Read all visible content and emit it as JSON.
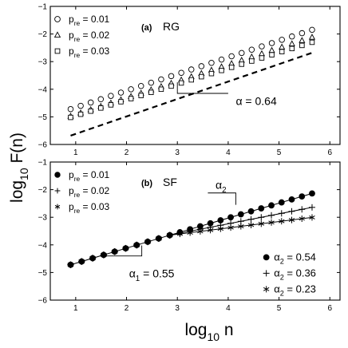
{
  "chart_data": [
    {
      "type": "scatter",
      "panel_label": "(a)",
      "panel_title": "RG",
      "xlim": [
        0.5,
        6.2
      ],
      "ylim": [
        -6,
        -1
      ],
      "xticks": [
        1,
        2,
        3,
        4,
        5,
        6
      ],
      "yticks": [
        -6,
        -5,
        -4,
        -3,
        -2,
        -1
      ],
      "legend": {
        "position": "top-left",
        "entries": [
          {
            "marker": "circle-open",
            "prefix": "p",
            "sub": "re",
            "suffix": " = 0.01"
          },
          {
            "marker": "triangle-open",
            "prefix": "p",
            "sub": "re",
            "suffix": " = 0.02"
          },
          {
            "marker": "square-open",
            "prefix": "p",
            "sub": "re",
            "suffix": " = 0.03"
          }
        ]
      },
      "series": [
        {
          "name": "p_re = 0.01",
          "marker": "circle-open",
          "x_start": 0.9,
          "x_end": 5.65,
          "y_start": -4.72,
          "y_end": -1.85,
          "points": 25
        },
        {
          "name": "p_re = 0.02",
          "marker": "triangle-open",
          "x_start": 0.9,
          "x_end": 5.65,
          "y_start": -4.98,
          "y_end": -2.12,
          "points": 25
        },
        {
          "name": "p_re = 0.03",
          "marker": "square-open",
          "x_start": 0.9,
          "x_end": 5.65,
          "y_start": -5.02,
          "y_end": -2.3,
          "points": 25
        }
      ],
      "reference_line": {
        "style": "dashed",
        "x": [
          0.9,
          5.7
        ],
        "y": [
          -5.68,
          -2.65
        ]
      },
      "annotation": {
        "symbol": "α",
        "text": " = 0.64",
        "x": 4.15,
        "y": -4.4
      }
    },
    {
      "type": "line",
      "panel_label": "(b)",
      "panel_title": "SF",
      "xlim": [
        0.5,
        6.2
      ],
      "ylim": [
        -6,
        -1
      ],
      "xticks": [
        1,
        2,
        3,
        4,
        5,
        6
      ],
      "yticks": [
        -6,
        -5,
        -4,
        -3,
        -2,
        -1
      ],
      "legend": {
        "position": "top-left",
        "entries": [
          {
            "marker": "circle-filled",
            "prefix": "p",
            "sub": "re",
            "suffix": " = 0.01"
          },
          {
            "marker": "plus",
            "prefix": "p",
            "sub": "re",
            "suffix": " = 0.02"
          },
          {
            "marker": "asterisk",
            "prefix": "p",
            "sub": "re",
            "suffix": " = 0.03"
          }
        ]
      },
      "common_segment": {
        "x_start": 0.9,
        "x_end": 2.85,
        "y_start": -4.72,
        "y_end": -3.65,
        "points": 10
      },
      "series": [
        {
          "name": "p_re = 0.01",
          "marker": "circle-filled",
          "slope": 0.54,
          "x_end": 5.65,
          "points": 15
        },
        {
          "name": "p_re = 0.02",
          "marker": "plus",
          "slope": 0.36,
          "x_end": 5.65,
          "points": 15
        },
        {
          "name": "p_re = 0.03",
          "marker": "asterisk",
          "slope": 0.23,
          "x_end": 5.65,
          "points": 15
        }
      ],
      "annotations": [
        {
          "symbol": "α",
          "sub": "1",
          "text": " = 0.55",
          "x": 2.05,
          "y": -5.0
        },
        {
          "symbol": "α",
          "sub": "2",
          "text": "",
          "x": 3.75,
          "y": -1.85
        }
      ],
      "slope_legend": {
        "position": "bottom-right",
        "entries": [
          {
            "marker": "circle-filled",
            "symbol": "α",
            "sub": "2",
            "text": " = 0.54"
          },
          {
            "marker": "plus",
            "symbol": "α",
            "sub": "2",
            "text": " = 0.36"
          },
          {
            "marker": "asterisk",
            "symbol": "α",
            "sub": "2",
            "text": " = 0.23"
          }
        ]
      }
    }
  ],
  "ylabel": {
    "base": "log",
    "sub": "10",
    "rest": " F(n)"
  },
  "xlabel": {
    "base": "log",
    "sub": "10",
    "rest": " n"
  }
}
